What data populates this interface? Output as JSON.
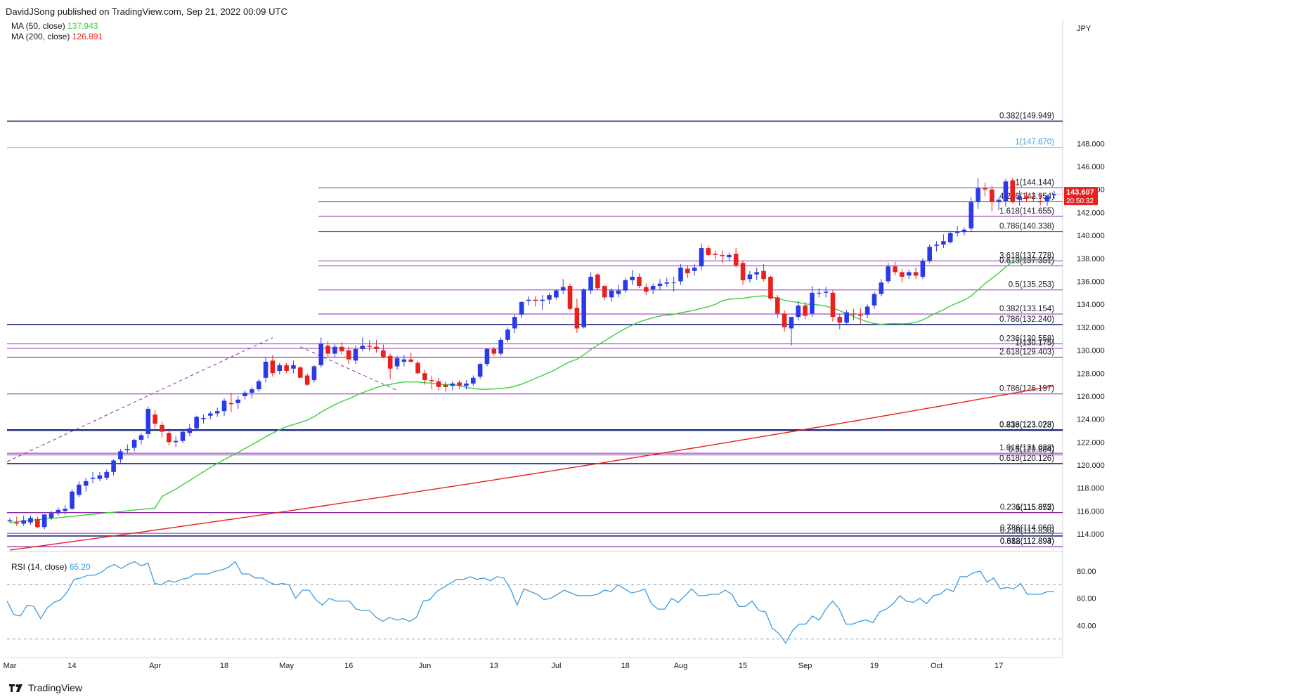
{
  "header": {
    "published": "DavidJSong published on TradingView.com, Sep 21, 2022 00:09 UTC"
  },
  "legend": {
    "ma50_label": "MA (50, close)",
    "ma50_value": "137.943",
    "ma200_label": "MA (200, close)",
    "ma200_value": "126.891",
    "rsi_label": "RSI (14, close)",
    "rsi_value": "65.20"
  },
  "currency": "JPY",
  "price_tag": {
    "price": "143.607",
    "countdown": "20:50:32"
  },
  "footer": {
    "brand": "TradingView"
  },
  "colors": {
    "up": "#2a3ae8",
    "down": "#e8211f",
    "ma50": "#3ccf3c",
    "ma200": "#e8211f",
    "rsi": "#3d9be0",
    "fib": "#8a2aa8",
    "level": "#1f3a8a",
    "ext": "#4aa0d8"
  },
  "chart_data": {
    "type": "candlestick",
    "y_axis": {
      "ticks": [
        114,
        116,
        118,
        120,
        122,
        124,
        126,
        128,
        130,
        132,
        134,
        136,
        138,
        140,
        142,
        144,
        146,
        148
      ],
      "range": [
        112.6,
        151.2
      ]
    },
    "x_axis_labels": [
      "Mar",
      "14",
      "Apr",
      "18",
      "May",
      "16",
      "Jun",
      "13",
      "Jul",
      "18",
      "Aug",
      "15",
      "Sep",
      "19",
      "Oct",
      "17"
    ],
    "levels": [
      {
        "label": "0.382(149.949)",
        "value": 149.949,
        "style": "dark"
      },
      {
        "label": "1(147.670)",
        "value": 147.67,
        "style": "ext"
      },
      {
        "label": "1(144.144)",
        "value": 144.144,
        "style": "fib"
      },
      {
        "label": "4.236(142.954)",
        "value": 142.954,
        "style": "fib"
      },
      {
        "label": "1.618(141.655)",
        "value": 141.655,
        "style": "fib"
      },
      {
        "label": "0.786(140.338)",
        "value": 140.338,
        "style": "fib"
      },
      {
        "label": "3.618(137.778)",
        "value": 137.778,
        "style": "fib"
      },
      {
        "label": "0.618(137.351)",
        "value": 137.351,
        "style": "fib"
      },
      {
        "label": "0.5(135.253)",
        "value": 135.253,
        "style": "fib"
      },
      {
        "label": "0.382(133.154)",
        "value": 133.154,
        "style": "fib"
      },
      {
        "label": "0.786(132.240)",
        "value": 132.24,
        "style": "dark"
      },
      {
        "label": "0.236(130.558)",
        "value": 130.558,
        "style": "fib"
      },
      {
        "label": "1(130.175)",
        "value": 130.175,
        "style": "fib"
      },
      {
        "label": "2.618(129.403)",
        "value": 129.403,
        "style": "fib"
      },
      {
        "label": "0.786(126.197)",
        "value": 126.197,
        "style": "fib"
      },
      {
        "label": "0.236(123.073)",
        "value": 123.073,
        "style": "dark"
      },
      {
        "label": "0.618(123.028)",
        "value": 123.028,
        "style": "dark"
      },
      {
        "label": "1.618(121.038)",
        "value": 121.038,
        "style": "fib"
      },
      {
        "label": "0.5(120.884)",
        "value": 120.884,
        "style": "fib"
      },
      {
        "label": "0.618(120.126)",
        "value": 120.126,
        "style": "dark"
      },
      {
        "label": "0.236(115.875)",
        "value": 115.875,
        "style": "fib"
      },
      {
        "label": "1(115.852)",
        "value": 115.852,
        "style": "fib"
      },
      {
        "label": "0.786(114.060)",
        "value": 114.06,
        "style": "fib"
      },
      {
        "label": "0.236(113.830)",
        "value": 113.83,
        "style": "dark"
      },
      {
        "label": "0.382(112.894)",
        "value": 112.894,
        "style": "fib"
      },
      {
        "label": "0.618(112.893)",
        "value": 112.893,
        "style": "fib"
      }
    ],
    "rsi": {
      "ticks": [
        40,
        60,
        80
      ],
      "bands": [
        70,
        30
      ],
      "values": [
        58,
        48,
        47,
        55,
        54,
        45,
        53,
        57,
        59,
        65,
        74,
        75,
        77,
        77,
        79,
        83,
        85,
        82,
        85,
        87,
        84,
        86,
        71,
        70,
        73,
        72,
        74,
        75,
        78,
        78,
        78,
        80,
        81,
        83,
        87,
        78,
        78,
        75,
        75,
        72,
        70,
        71,
        70,
        60,
        66,
        66,
        59,
        55,
        60,
        58,
        58,
        58,
        52,
        51,
        51,
        46,
        43,
        46,
        44,
        45,
        43,
        46,
        58,
        59,
        65,
        68,
        71,
        74,
        74,
        76,
        74,
        75,
        73,
        76,
        75,
        67,
        55,
        67,
        65,
        63,
        59,
        60,
        63,
        66,
        64,
        62,
        62,
        62,
        63,
        66,
        65,
        70,
        67,
        64,
        65,
        67,
        56,
        52,
        52,
        60,
        57,
        62,
        67,
        62,
        62,
        63,
        63,
        66,
        63,
        54,
        54,
        58,
        51,
        50,
        38,
        34,
        27,
        36,
        41,
        41,
        47,
        44,
        52,
        58,
        52,
        41,
        41,
        43,
        44,
        42,
        50,
        52,
        56,
        62,
        58,
        57,
        60,
        56,
        62,
        63,
        67,
        65,
        76,
        76,
        79,
        80,
        72,
        75,
        67,
        68,
        67,
        71,
        63,
        63,
        63,
        65,
        65
      ]
    },
    "candles": [
      [
        115.1,
        115.4,
        115.0,
        115.2
      ],
      [
        115.0,
        115.5,
        114.7,
        114.9
      ],
      [
        114.9,
        115.6,
        114.7,
        115.2
      ],
      [
        115.0,
        115.6,
        114.8,
        115.4
      ],
      [
        115.3,
        115.5,
        114.5,
        114.6
      ],
      [
        114.6,
        115.7,
        114.4,
        115.7
      ],
      [
        115.4,
        116.0,
        115.2,
        115.8
      ],
      [
        115.8,
        116.3,
        115.6,
        116.1
      ],
      [
        116.0,
        116.5,
        115.7,
        116.2
      ],
      [
        116.2,
        117.9,
        116.1,
        117.7
      ],
      [
        117.4,
        118.6,
        117.2,
        118.3
      ],
      [
        118.2,
        118.9,
        117.7,
        118.6
      ],
      [
        118.8,
        119.4,
        118.4,
        118.9
      ],
      [
        118.8,
        119.4,
        118.6,
        119.1
      ],
      [
        118.9,
        119.6,
        118.7,
        119.4
      ],
      [
        119.4,
        120.5,
        119.1,
        120.4
      ],
      [
        120.5,
        121.4,
        120.2,
        121.2
      ],
      [
        121.3,
        121.8,
        121.0,
        121.4
      ],
      [
        121.5,
        122.3,
        121.2,
        122.2
      ],
      [
        122.2,
        122.8,
        121.8,
        122.6
      ],
      [
        122.7,
        125.1,
        122.3,
        124.9
      ],
      [
        124.4,
        124.8,
        123.2,
        123.6
      ],
      [
        123.5,
        123.8,
        122.4,
        122.9
      ],
      [
        122.8,
        123.2,
        121.7,
        122.0
      ],
      [
        122.0,
        122.5,
        121.6,
        122.1
      ],
      [
        122.1,
        123.1,
        121.9,
        122.9
      ],
      [
        122.8,
        123.6,
        122.5,
        123.2
      ],
      [
        123.2,
        124.3,
        123.0,
        124.2
      ],
      [
        124.0,
        124.4,
        123.6,
        124.1
      ],
      [
        124.3,
        124.7,
        124.0,
        124.5
      ],
      [
        124.5,
        125.0,
        124.2,
        124.7
      ],
      [
        124.7,
        125.8,
        124.3,
        125.6
      ],
      [
        125.4,
        126.3,
        124.6,
        125.3
      ],
      [
        125.4,
        126.0,
        124.9,
        125.7
      ],
      [
        126.0,
        126.5,
        125.7,
        126.3
      ],
      [
        126.3,
        126.8,
        125.8,
        126.6
      ],
      [
        126.6,
        127.5,
        126.4,
        127.3
      ],
      [
        127.6,
        129.4,
        127.2,
        129.0
      ],
      [
        129.1,
        129.6,
        127.7,
        128.0
      ],
      [
        128.2,
        128.9,
        127.9,
        128.7
      ],
      [
        128.7,
        128.9,
        128.0,
        128.2
      ],
      [
        128.4,
        129.1,
        128.0,
        128.7
      ],
      [
        128.5,
        128.6,
        127.6,
        127.6
      ],
      [
        127.8,
        128.0,
        126.9,
        127.0
      ],
      [
        127.4,
        128.7,
        127.2,
        128.6
      ],
      [
        128.7,
        131.1,
        128.5,
        130.6
      ],
      [
        130.4,
        130.8,
        129.4,
        129.7
      ],
      [
        129.7,
        130.5,
        129.4,
        130.3
      ],
      [
        130.3,
        130.7,
        129.6,
        129.9
      ],
      [
        130.0,
        130.3,
        128.8,
        129.2
      ],
      [
        129.1,
        130.4,
        128.8,
        130.1
      ],
      [
        130.1,
        131.1,
        129.9,
        130.4
      ],
      [
        130.4,
        130.9,
        129.9,
        130.3
      ],
      [
        130.3,
        130.9,
        129.8,
        130.1
      ],
      [
        130.0,
        130.5,
        129.3,
        129.4
      ],
      [
        129.5,
        129.7,
        127.5,
        128.4
      ],
      [
        128.6,
        129.5,
        128.3,
        129.3
      ],
      [
        129.0,
        129.6,
        128.6,
        129.2
      ],
      [
        129.2,
        129.8,
        128.9,
        129.0
      ],
      [
        128.9,
        129.1,
        127.9,
        128.0
      ],
      [
        128.0,
        128.3,
        127.0,
        127.4
      ],
      [
        127.4,
        127.8,
        126.6,
        127.3
      ],
      [
        127.3,
        127.6,
        126.5,
        126.8
      ],
      [
        127.0,
        127.3,
        126.4,
        126.8
      ],
      [
        126.9,
        127.3,
        126.5,
        127.1
      ],
      [
        127.2,
        127.4,
        126.6,
        126.9
      ],
      [
        126.9,
        127.4,
        126.6,
        127.1
      ],
      [
        127.1,
        127.8,
        126.9,
        127.6
      ],
      [
        127.7,
        128.9,
        127.5,
        128.8
      ],
      [
        128.8,
        130.2,
        128.6,
        130.1
      ],
      [
        130.1,
        130.3,
        129.5,
        129.7
      ],
      [
        129.7,
        131.1,
        129.5,
        130.9
      ],
      [
        130.9,
        132.0,
        130.7,
        131.8
      ],
      [
        131.9,
        133.1,
        131.5,
        132.9
      ],
      [
        133.1,
        134.3,
        132.8,
        134.2
      ],
      [
        134.3,
        134.7,
        133.9,
        134.4
      ],
      [
        134.4,
        134.7,
        133.8,
        134.3
      ],
      [
        134.3,
        134.8,
        133.5,
        134.4
      ],
      [
        134.4,
        135.0,
        134.0,
        134.8
      ],
      [
        134.6,
        135.3,
        134.4,
        135.2
      ],
      [
        135.2,
        136.2,
        134.9,
        135.5
      ],
      [
        135.6,
        135.8,
        133.5,
        133.6
      ],
      [
        133.7,
        134.5,
        131.5,
        131.9
      ],
      [
        132.0,
        135.4,
        131.9,
        135.3
      ],
      [
        135.2,
        136.8,
        134.9,
        136.4
      ],
      [
        136.6,
        136.7,
        135.2,
        135.4
      ],
      [
        135.6,
        135.7,
        134.4,
        134.6
      ],
      [
        134.6,
        135.4,
        134.2,
        135.2
      ],
      [
        134.9,
        135.7,
        134.6,
        135.2
      ],
      [
        135.2,
        136.3,
        135.0,
        136.1
      ],
      [
        136.1,
        137.0,
        135.7,
        136.4
      ],
      [
        136.4,
        136.7,
        135.4,
        135.6
      ],
      [
        135.5,
        135.8,
        134.8,
        135.1
      ],
      [
        135.3,
        135.8,
        134.9,
        135.6
      ],
      [
        135.6,
        136.2,
        135.2,
        135.8
      ],
      [
        135.8,
        136.3,
        135.5,
        135.9
      ],
      [
        135.9,
        136.4,
        135.1,
        135.9
      ],
      [
        136.0,
        137.5,
        135.7,
        137.2
      ],
      [
        137.1,
        137.4,
        136.3,
        136.7
      ],
      [
        136.9,
        137.5,
        136.5,
        137.2
      ],
      [
        137.3,
        139.3,
        137.0,
        138.9
      ],
      [
        138.9,
        139.1,
        138.2,
        138.3
      ],
      [
        138.4,
        138.7,
        137.9,
        138.3
      ],
      [
        138.3,
        138.7,
        137.6,
        138.2
      ],
      [
        138.1,
        138.5,
        137.8,
        138.3
      ],
      [
        138.4,
        138.9,
        137.2,
        137.4
      ],
      [
        137.6,
        137.8,
        135.7,
        136.1
      ],
      [
        136.2,
        136.9,
        135.9,
        136.6
      ],
      [
        136.6,
        137.2,
        136.1,
        136.8
      ],
      [
        136.9,
        137.5,
        136.0,
        136.2
      ],
      [
        136.4,
        136.5,
        134.4,
        134.5
      ],
      [
        134.6,
        134.8,
        132.8,
        133.2
      ],
      [
        133.2,
        133.5,
        131.6,
        132.0
      ],
      [
        131.9,
        132.8,
        130.4,
        132.9
      ],
      [
        132.9,
        134.3,
        132.6,
        133.9
      ],
      [
        133.9,
        134.2,
        132.7,
        133.0
      ],
      [
        133.2,
        135.6,
        132.9,
        135.0
      ],
      [
        135.0,
        135.4,
        134.6,
        135.0
      ],
      [
        135.0,
        135.5,
        134.6,
        135.1
      ],
      [
        135.0,
        135.2,
        132.5,
        132.9
      ],
      [
        132.9,
        133.2,
        131.8,
        132.4
      ],
      [
        132.4,
        133.5,
        132.2,
        133.3
      ],
      [
        133.2,
        133.6,
        132.6,
        133.1
      ],
      [
        133.1,
        133.7,
        132.3,
        133.0
      ],
      [
        133.1,
        134.0,
        132.8,
        133.8
      ],
      [
        133.9,
        135.1,
        133.6,
        134.9
      ],
      [
        134.9,
        136.2,
        134.7,
        135.9
      ],
      [
        136.0,
        137.6,
        135.8,
        137.3
      ],
      [
        137.3,
        137.7,
        136.5,
        136.8
      ],
      [
        136.8,
        137.1,
        135.9,
        136.4
      ],
      [
        136.5,
        137.0,
        136.2,
        136.8
      ],
      [
        136.8,
        137.2,
        136.2,
        136.5
      ],
      [
        136.4,
        138.0,
        136.2,
        137.8
      ],
      [
        137.8,
        139.2,
        137.6,
        139.0
      ],
      [
        139.1,
        139.5,
        138.6,
        139.2
      ],
      [
        139.2,
        140.1,
        138.9,
        139.5
      ],
      [
        139.4,
        140.3,
        139.3,
        140.2
      ],
      [
        140.2,
        140.8,
        139.9,
        140.3
      ],
      [
        140.3,
        140.7,
        140.0,
        140.5
      ],
      [
        140.6,
        143.3,
        140.3,
        142.9
      ],
      [
        142.9,
        145.0,
        142.3,
        144.1
      ],
      [
        144.1,
        144.6,
        143.4,
        144.0
      ],
      [
        144.0,
        144.3,
        142.1,
        142.9
      ],
      [
        142.9,
        143.3,
        142.2,
        143.1
      ],
      [
        143.0,
        144.9,
        142.5,
        144.7
      ],
      [
        144.8,
        145.0,
        142.8,
        142.9
      ],
      [
        143.1,
        143.9,
        142.6,
        143.4
      ],
      [
        143.4,
        143.8,
        142.9,
        143.2
      ],
      [
        143.4,
        143.8,
        142.9,
        143.3
      ],
      [
        143.0,
        143.6,
        142.6,
        142.9
      ],
      [
        143.0,
        143.6,
        142.6,
        143.4
      ],
      [
        143.5,
        143.9,
        143.2,
        143.6
      ]
    ]
  }
}
